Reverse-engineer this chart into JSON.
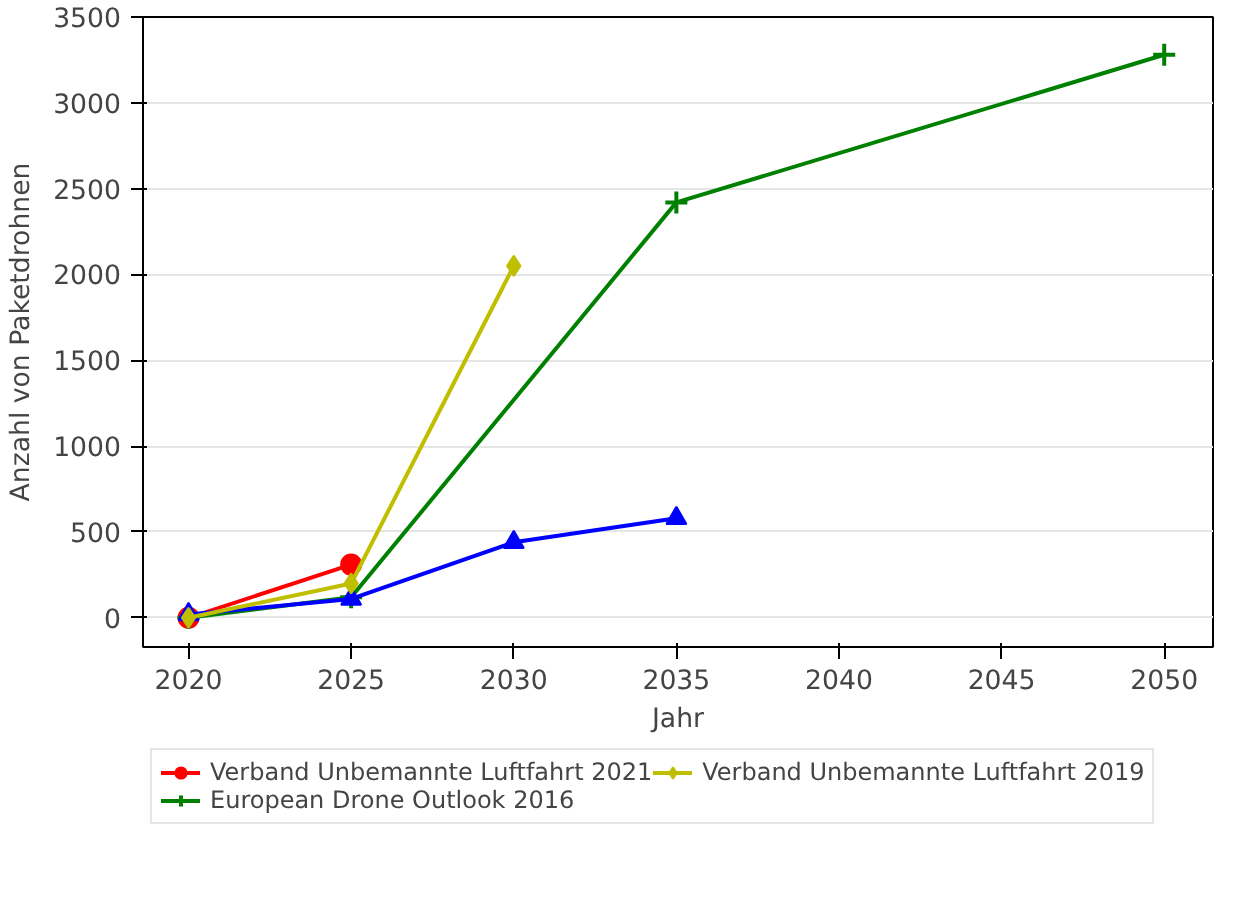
{
  "chart_data": {
    "type": "line",
    "xlabel": "Jahr",
    "ylabel": "Anzahl von Paketdrohnen",
    "xlim": [
      2018.6,
      2051.5
    ],
    "ylim": [
      -170,
      3500
    ],
    "xticks": [
      2020,
      2025,
      2030,
      2035,
      2040,
      2045,
      2050
    ],
    "yticks": [
      0,
      500,
      1000,
      1500,
      2000,
      2500,
      3000,
      3500
    ],
    "grid": "y",
    "legend": "bottom",
    "line_style": "solid",
    "series": [
      {
        "name": "Verband Unbemannte Luftfahrt 2021",
        "color": "#ff0000",
        "marker": "circle",
        "x": [
          2020,
          2025
        ],
        "values": [
          0,
          310
        ]
      },
      {
        "name": "European Drone Outlook 2016",
        "color": "#008000",
        "marker": "cross",
        "x": [
          2020,
          2025,
          2035,
          2050
        ],
        "values": [
          0,
          120,
          2420,
          3280
        ]
      },
      {
        "color": "#0000ff",
        "marker": "triangle",
        "x": [
          2020,
          2025,
          2030,
          2035
        ],
        "values": [
          20,
          110,
          440,
          580
        ]
      },
      {
        "name": "Verband Unbemannte Luftfahrt 2019",
        "color": "#bfbf00",
        "marker": "diamond",
        "x": [
          2020,
          2025,
          2030
        ],
        "values": [
          0,
          200,
          2050
        ]
      }
    ]
  }
}
